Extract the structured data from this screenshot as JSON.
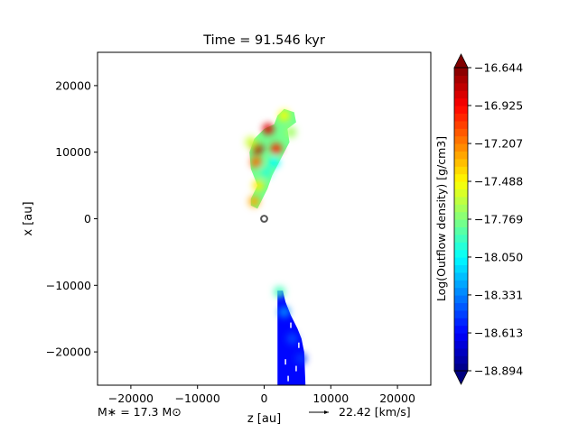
{
  "chart_data": {
    "type": "heatmap",
    "title": "Time = 91.546 kyr",
    "xlabel": "z [au]",
    "ylabel": "x [au]",
    "xlim": [
      -25000,
      25000
    ],
    "ylim": [
      -25000,
      25000
    ],
    "xticks": [
      -20000,
      -10000,
      0,
      10000,
      20000
    ],
    "xtick_labels": [
      "−20000",
      "−10000",
      "0",
      "10000",
      "20000"
    ],
    "yticks": [
      20000,
      10000,
      0,
      -10000,
      -20000
    ],
    "ytick_labels": [
      "20000",
      "10000",
      "0",
      "−10000",
      "−20000"
    ],
    "grid": false,
    "colorbar": {
      "label": "Log(Outflow density) [g/cm3]",
      "min": -18.894,
      "max": -16.644,
      "ticks": [
        -16.644,
        -16.925,
        -17.207,
        -17.488,
        -17.769,
        -18.05,
        -18.331,
        -18.613,
        -18.894
      ],
      "tick_labels": [
        "−16.644",
        "−16.925",
        "−17.207",
        "−17.488",
        "−17.769",
        "−18.050",
        "−18.331",
        "−18.613",
        "−18.894"
      ],
      "colormap": "jet",
      "extend": "both"
    },
    "star_mass_label": "M$_*$ = 17.3 M$_\\odot$",
    "star_mass_text": "M∗ = 17.3 M⊙",
    "velocity_key_label": "22.42 [km/s]",
    "sink_position": [
      0,
      0
    ],
    "regions": [
      {
        "name": "upper-lobe",
        "polygon": [
          [
            -2000,
            2000
          ],
          [
            -2000,
            3000
          ],
          [
            -1000,
            5000
          ],
          [
            -2000,
            7500
          ],
          [
            -2200,
            10000
          ],
          [
            -1500,
            12000
          ],
          [
            0,
            13500
          ],
          [
            1500,
            14200
          ],
          [
            2000,
            15500
          ],
          [
            3000,
            16500
          ],
          [
            4500,
            16000
          ],
          [
            4800,
            14500
          ],
          [
            3500,
            13500
          ],
          [
            3800,
            11500
          ],
          [
            2500,
            9000
          ],
          [
            1200,
            6500
          ],
          [
            500,
            4500
          ],
          [
            -500,
            2500
          ],
          [
            -1000,
            1500
          ]
        ],
        "level": -17.8
      },
      {
        "name": "lower-lobe",
        "polygon": [
          [
            2000,
            -10800
          ],
          [
            2800,
            -10800
          ],
          [
            3200,
            -12500
          ],
          [
            4000,
            -14500
          ],
          [
            5000,
            -16500
          ],
          [
            5600,
            -18000
          ],
          [
            6000,
            -20000
          ],
          [
            6200,
            -25000
          ],
          [
            2000,
            -25000
          ]
        ],
        "level": -18.6
      }
    ],
    "blobs": [
      {
        "z": -1000,
        "x": 10500,
        "value": -16.75
      },
      {
        "z": 600,
        "x": 13500,
        "value": -16.85
      },
      {
        "z": -1200,
        "x": 8500,
        "value": -17.15
      },
      {
        "z": 1800,
        "x": 10500,
        "value": -17.0
      },
      {
        "z": -900,
        "x": 5000,
        "value": -17.45
      },
      {
        "z": -1500,
        "x": 2600,
        "value": -17.3
      },
      {
        "z": 3000,
        "x": 15500,
        "value": -17.5
      },
      {
        "z": 4000,
        "x": 13000,
        "value": -17.7
      },
      {
        "z": -2000,
        "x": 11500,
        "value": -17.6
      },
      {
        "z": 300,
        "x": 7000,
        "value": -17.95
      },
      {
        "z": 1500,
        "x": 8500,
        "value": -18.05
      },
      {
        "z": 2300,
        "x": -11000,
        "value": -17.9
      },
      {
        "z": 3000,
        "x": -14000,
        "value": -18.3
      },
      {
        "z": 4200,
        "x": -18000,
        "value": -18.45
      },
      {
        "z": 5500,
        "x": -21000,
        "value": -18.5
      }
    ]
  }
}
